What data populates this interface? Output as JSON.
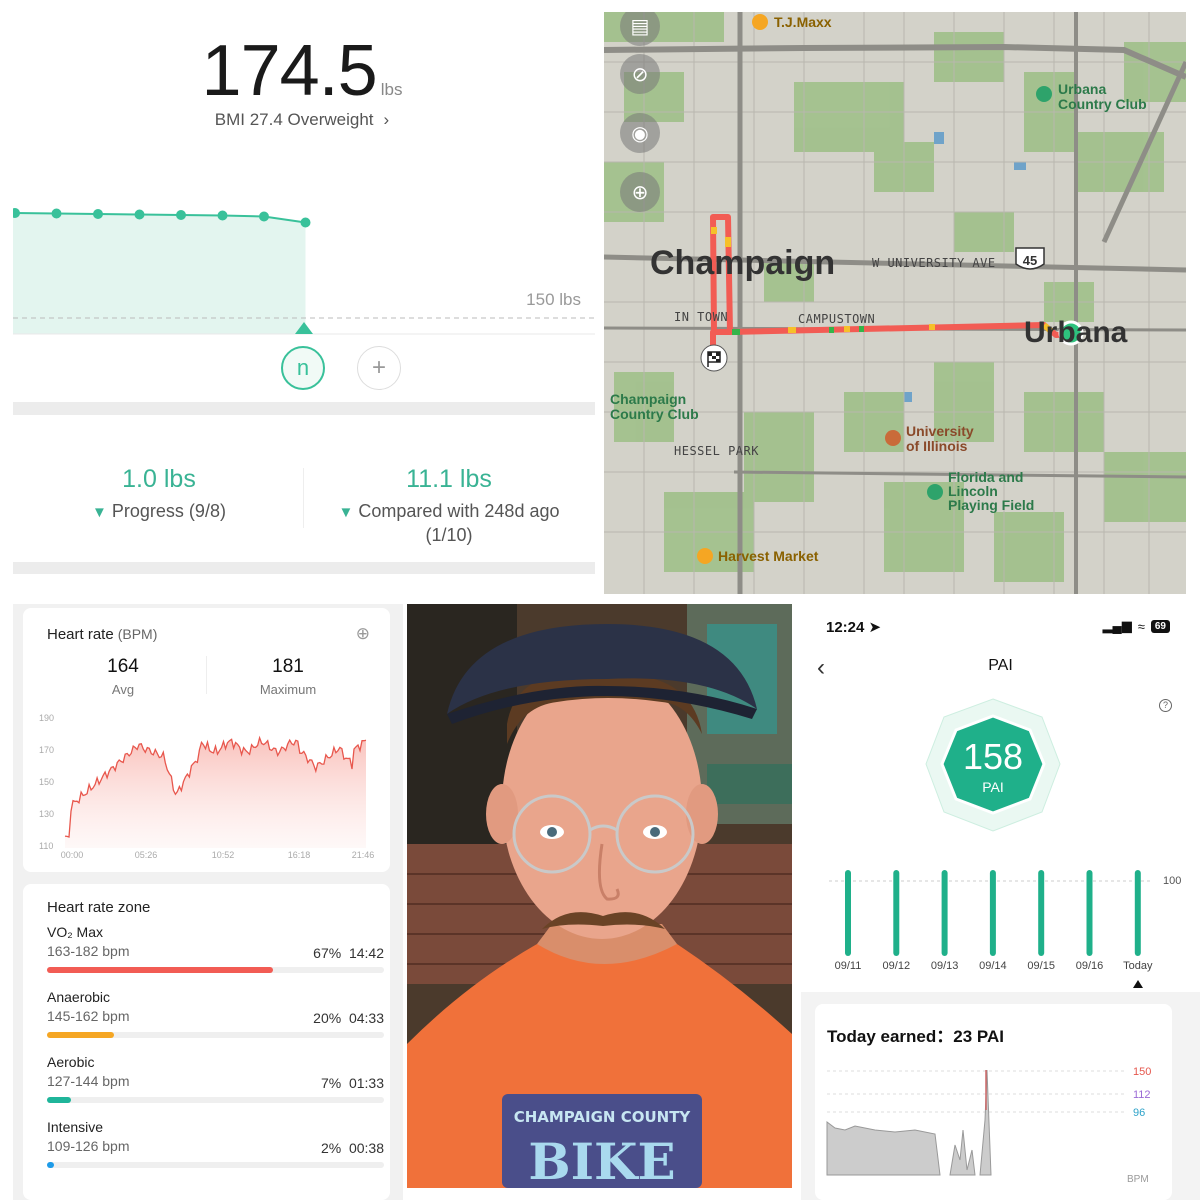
{
  "weight": {
    "value": "174.5",
    "unit": "lbs",
    "bmi_text": "BMI 27.4 Overweight",
    "target_label": "150 lbs",
    "series_lbs": [
      176.4,
      176.3,
      176.2,
      176.1,
      176.0,
      175.9,
      175.7,
      174.5
    ],
    "user_initial": "n",
    "add_symbol": "+",
    "stats": [
      {
        "value": "1.0 lbs",
        "label": "Progress (9/8)"
      },
      {
        "value": "11.1 lbs",
        "label": "Compared with 248d ago",
        "sub": "(1/10)"
      }
    ],
    "colors": {
      "accent": "#39c19a",
      "fill": "#e3f5ef"
    }
  },
  "map": {
    "labels": {
      "tj_maxx": "T.J.Maxx",
      "urbana_cc": "Urbana Country Club",
      "urbana_cc_l1": "Urbana",
      "urbana_cc_l2": "Country Club",
      "champaign": "Champaign",
      "university_ave": "W UNIVERSITY AVE",
      "route_shield": "45",
      "in_town": "IN TOWN",
      "campustown": "CAMPUSTOWN",
      "urbana": "Urbana",
      "champaign_cc_l1": "Champaign",
      "champaign_cc_l2": "Country Club",
      "hessel_park": "HESSEL PARK",
      "uiuc_l1": "University",
      "uiuc_l2": "of Illinois",
      "florida_l1": "Florida and",
      "florida_l2": "Lincoln",
      "florida_l3": "Playing Field",
      "harvest_market": "Harvest Market"
    },
    "colors": {
      "route": "#f25c54",
      "route_fast": "#f6c02a",
      "start": "#2ec27e"
    }
  },
  "heart_rate": {
    "title": "Heart rate",
    "unit": "(BPM)",
    "avg_value": "164",
    "avg_label": "Avg",
    "max_value": "181",
    "max_label": "Maximum",
    "y_ticks": [
      "190",
      "170",
      "150",
      "130",
      "110"
    ],
    "x_ticks": [
      "00:00",
      "05:26",
      "10:52",
      "16:18",
      "21:46"
    ],
    "zone_title": "Heart rate zone",
    "zones": [
      {
        "name": "VO₂ Max",
        "range": "163-182 bpm",
        "percent": "67%",
        "time": "14:42",
        "fraction": 0.67,
        "color": "#f25c54"
      },
      {
        "name": "Anaerobic",
        "range": "145-162 bpm",
        "percent": "20%",
        "time": "04:33",
        "fraction": 0.2,
        "color": "#f5a623"
      },
      {
        "name": "Aerobic",
        "range": "127-144 bpm",
        "percent": "7%",
        "time": "01:33",
        "fraction": 0.07,
        "color": "#1fb59a"
      },
      {
        "name": "Intensive",
        "range": "109-126 bpm",
        "percent": "2%",
        "time": "00:38",
        "fraction": 0.02,
        "color": "#1e9be8"
      }
    ]
  },
  "selfie": {
    "shirt_line1": "CHAMPAIGN COUNTY",
    "shirt_line2": "BIKE"
  },
  "pai": {
    "status_time": "12:24",
    "battery": "69",
    "title": "PAI",
    "help": "?",
    "value": "158",
    "unit": "PAI",
    "y_label": "100",
    "days": [
      "09/11",
      "09/12",
      "09/13",
      "09/14",
      "09/15",
      "09/16",
      "Today"
    ],
    "earned_label": "Today earned：23 PAI",
    "levels": [
      "150",
      "112",
      "96"
    ],
    "bpm_label": "BPM",
    "colors": {
      "accent": "#1fb08a"
    }
  }
}
